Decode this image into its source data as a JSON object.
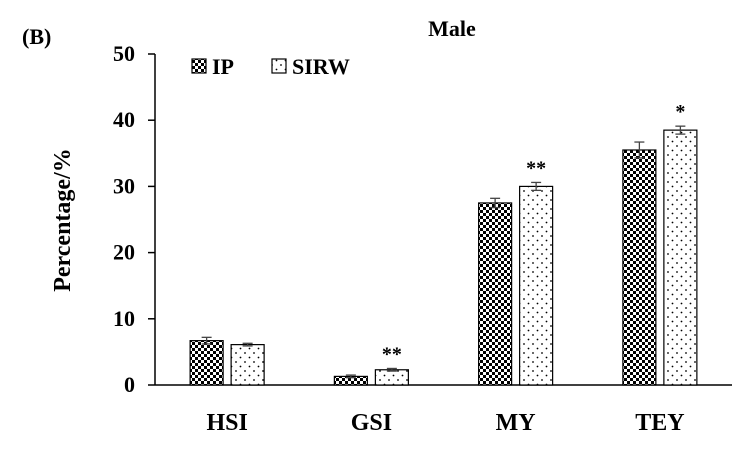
{
  "panel_label": "(B)",
  "chart_data": {
    "type": "bar",
    "title": "Male",
    "xlabel": "",
    "ylabel": "Percentage/%",
    "ylim": [
      0,
      50
    ],
    "yticks": [
      0,
      10,
      20,
      30,
      40,
      50
    ],
    "grid": false,
    "legend_position": "top-left",
    "categories": [
      "HSI",
      "GSI",
      "MY",
      "TEY"
    ],
    "series": [
      {
        "name": "IP",
        "pattern": "checkered",
        "values": [
          6.7,
          1.3,
          27.5,
          35.5
        ],
        "errors": [
          0.5,
          0.2,
          0.7,
          1.2
        ]
      },
      {
        "name": "SIRW",
        "pattern": "dotted",
        "values": [
          6.1,
          2.3,
          30.0,
          38.5
        ],
        "errors": [
          0.2,
          0.2,
          0.6,
          0.6
        ]
      }
    ],
    "annotations": [
      {
        "category": "GSI",
        "series": "SIRW",
        "text": "**"
      },
      {
        "category": "MY",
        "series": "SIRW",
        "text": "**"
      },
      {
        "category": "TEY",
        "series": "SIRW",
        "text": "*"
      }
    ]
  }
}
